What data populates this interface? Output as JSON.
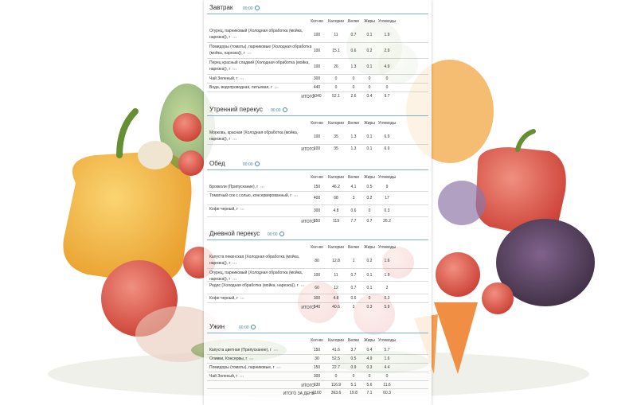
{
  "columns": [
    "Кол-во",
    "Калории",
    "Белки",
    "Жиры",
    "Углеводы"
  ],
  "more_icon": "ellipsis-icon",
  "meals": [
    {
      "title": "Завтрак",
      "time": "00:00",
      "items": [
        {
          "name": "Огурец, парниковый (Холодная обработка (мойка, нарезка)), г",
          "qty": "100",
          "kcal": "11",
          "protein": "0.7",
          "fat": "0.1",
          "carbs": "1.9"
        },
        {
          "name": "Помидоры (томаты), парниковые (Холодная обработка (мойка, нарезка)), г",
          "qty": "100",
          "kcal": "15.1",
          "protein": "0.6",
          "fat": "0.2",
          "carbs": "2.9"
        },
        {
          "name": "Перец красный сладкий (Холодная обработка (мойка, нарезка)), г",
          "qty": "100",
          "kcal": "26",
          "protein": "1.3",
          "fat": "0.1",
          "carbs": "4.9"
        },
        {
          "name": "Чай Зеленый, г",
          "qty": "300",
          "kcal": "0",
          "protein": "0",
          "fat": "0",
          "carbs": "0"
        },
        {
          "name": "Вода, водопроводная, питьевая, г",
          "qty": "440",
          "kcal": "0",
          "protein": "0",
          "fat": "0",
          "carbs": "0"
        }
      ],
      "total": {
        "label": "ИТОГО",
        "qty": "1040",
        "kcal": "52.1",
        "protein": "2.6",
        "fat": "0.4",
        "carbs": "9.7"
      }
    },
    {
      "title": "Утренний перекус",
      "time": "00:00",
      "items": [
        {
          "name": "Морковь, красная (Холодная обработка (мойка, нарезка)), г",
          "qty": "100",
          "kcal": "35",
          "protein": "1.3",
          "fat": "0.1",
          "carbs": "6.9"
        }
      ],
      "total": {
        "label": "ИТОГО",
        "qty": "100",
        "kcal": "35",
        "protein": "1.3",
        "fat": "0.1",
        "carbs": "6.9"
      }
    },
    {
      "title": "Обед",
      "time": "00:00",
      "items": [
        {
          "name": "Брокколи (Припускание), г",
          "qty": "150",
          "kcal": "46.2",
          "protein": "4.1",
          "fat": "0.5",
          "carbs": "9"
        },
        {
          "name": "Томатный сок с солью, консервированный, г",
          "qty": "400",
          "kcal": "68",
          "protein": "3",
          "fat": "0.2",
          "carbs": "17"
        },
        {
          "name": "Кофе черный, г",
          "qty": "300",
          "kcal": "4.8",
          "protein": "0.6",
          "fat": "0",
          "carbs": "0.3"
        }
      ],
      "total": {
        "label": "ИТОГО",
        "qty": "850",
        "kcal": "119",
        "protein": "7.7",
        "fat": "0.7",
        "carbs": "26.2"
      }
    },
    {
      "title": "Дневной перекус",
      "time": "00:00",
      "items": [
        {
          "name": "Капуста пекинская (Холодная обработка (мойка, нарезка)), г",
          "qty": "80",
          "kcal": "12.8",
          "protein": "1",
          "fat": "0.2",
          "carbs": "1.6"
        },
        {
          "name": "Огурец, парниковый (Холодная обработка (мойка, нарезка)), г",
          "qty": "100",
          "kcal": "11",
          "protein": "0.7",
          "fat": "0.1",
          "carbs": "1.9"
        },
        {
          "name": "Редис (Холодная обработка (мойка, нарезка)), г",
          "qty": "60",
          "kcal": "12",
          "protein": "0.7",
          "fat": "0.1",
          "carbs": "2"
        },
        {
          "name": "Кофе черный, г",
          "qty": "300",
          "kcal": "4.8",
          "protein": "0.6",
          "fat": "0",
          "carbs": "0.3"
        }
      ],
      "total": {
        "label": "ИТОГО",
        "qty": "540",
        "kcal": "40.6",
        "protein": "3",
        "fat": "0.3",
        "carbs": "5.9"
      }
    },
    {
      "title": "Ужин",
      "time": "00:00",
      "items": [
        {
          "name": "Капуста цветная (Припускание), г",
          "qty": "150",
          "kcal": "41.6",
          "protein": "3.7",
          "fat": "0.4",
          "carbs": "5.7"
        },
        {
          "name": "Оливки, Консервы, г",
          "qty": "30",
          "kcal": "52.5",
          "protein": "0.5",
          "fat": "4.9",
          "carbs": "1.6"
        },
        {
          "name": "Помидоры (томаты), парниковые, г",
          "qty": "150",
          "kcal": "22.7",
          "protein": "0.9",
          "fat": "0.3",
          "carbs": "4.4"
        },
        {
          "name": "Чай Зеленый, г",
          "qty": "300",
          "kcal": "0",
          "protein": "0",
          "fat": "0",
          "carbs": "0"
        }
      ],
      "total": {
        "label": "ИТОГО",
        "qty": "630",
        "kcal": "116.9",
        "protein": "5.1",
        "fat": "5.6",
        "carbs": "11.6"
      }
    }
  ],
  "day_total": {
    "label": "ИТОГО ЗА ДЕНЬ",
    "qty": "3160",
    "kcal": "363.6",
    "protein": "19.8",
    "fat": "7.1",
    "carbs": "60.3"
  }
}
